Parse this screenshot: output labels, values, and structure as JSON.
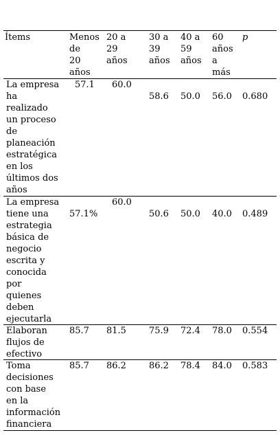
{
  "table": {
    "headers": [
      "Ítems",
      "Menos\n de\n20\naños",
      "20 a\n29\naños",
      "30 a\n39\naños",
      "40 a\n59\naños",
      "60\naños\n a\nmás",
      "p"
    ],
    "rows": [
      {
        "item": "La empresa\nha\nrealizado\nun proceso\nde\nplaneación\nestratégica\nen los\núltimos dos\naños",
        "values": [
          "57.1",
          "60.0",
          "58.6",
          "50.0",
          "56.0",
          "0.680"
        ]
      },
      {
        "item": "La empresa\ntiene una\nestrategia\nbásica de\nnegocio\nescrita y\nconocida\npor\nquienes\ndeben\nejecutarla",
        "values": [
          "57.1%",
          "60.0",
          "50.6",
          "50.0",
          "40.0",
          "0.489"
        ]
      },
      {
        "item": " Elaboran\nflujos de\nefectivo",
        "values": [
          "85.7",
          "81.5",
          "75.9",
          "72.4",
          "78.0",
          "0.554"
        ]
      },
      {
        "item": "Toma\ndecisiones\ncon base\nen la\ninformación\n financiera",
        "values": [
          "85.7",
          "86.2",
          "86.2",
          "78.4",
          "84.0",
          "0.583"
        ]
      }
    ]
  }
}
